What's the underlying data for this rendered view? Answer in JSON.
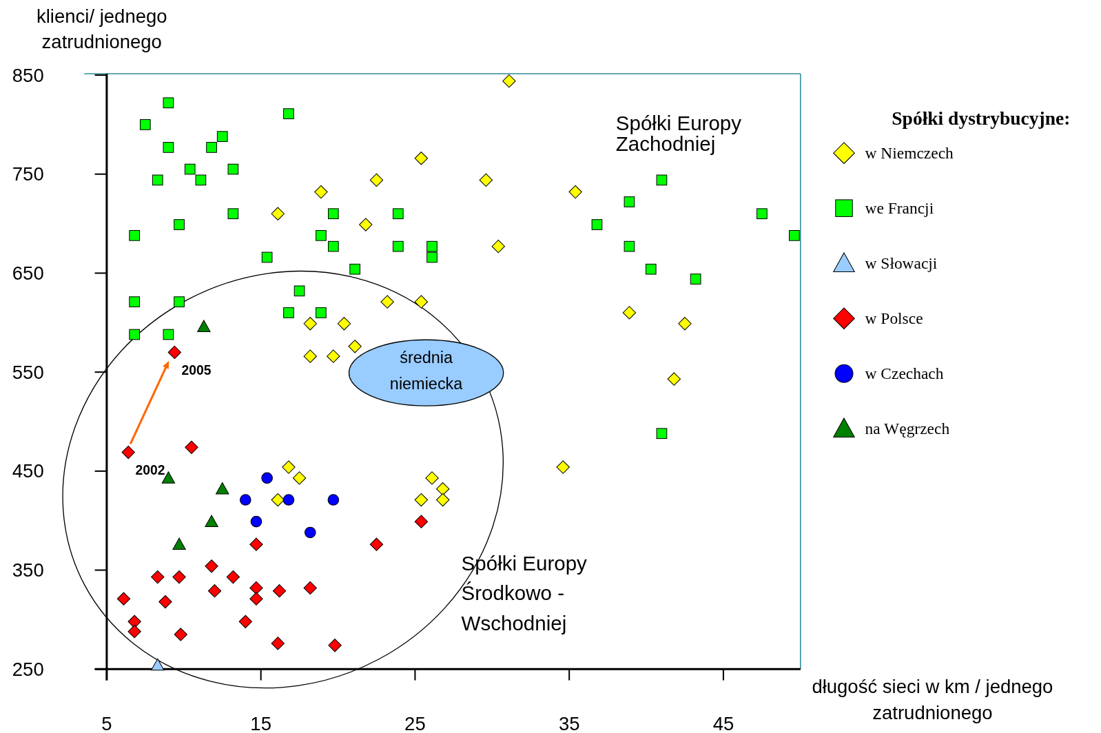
{
  "chart_data": {
    "type": "scatter",
    "xlabel": "długość sieci w km / jednego\nzatrudnionego",
    "ylabel": "klienci/ jednego\nzatrudnionego",
    "legend_title": "Spółki dystrybucyjne:",
    "legend": "right",
    "grid": false,
    "xlim": [
      5,
      50
    ],
    "ylim": [
      250,
      850
    ],
    "xticks": [
      5,
      15,
      25,
      35,
      45
    ],
    "yticks": [
      250,
      350,
      450,
      550,
      650,
      750,
      850
    ],
    "series": [
      {
        "name": "w Niemczech",
        "color": "#ffff00",
        "marker": "diamond",
        "x": [
          31.1,
          25.4,
          18.9,
          22.5,
          29.6,
          35.4,
          16.1,
          21.8,
          30.4,
          23.2,
          25.4,
          18.2,
          20.4,
          21.1,
          18.2,
          19.7,
          38.9,
          42.5,
          41.8,
          34.6,
          16.8,
          17.5,
          16.1,
          26.1,
          26.8,
          25.4,
          26.8
        ],
        "values": [
          844,
          766,
          732,
          744,
          744,
          732,
          710,
          699,
          677,
          621,
          621,
          599,
          599,
          576,
          566,
          566,
          610,
          599,
          543,
          454,
          454,
          443,
          421,
          443,
          432,
          421,
          421
        ]
      },
      {
        "name": "we Francji",
        "color": "#00ff00",
        "marker": "square",
        "x": [
          9.0,
          7.5,
          12.5,
          11.8,
          9.0,
          16.8,
          10.4,
          13.2,
          8.3,
          11.1,
          13.2,
          19.7,
          23.9,
          6.8,
          9.7,
          18.9,
          19.7,
          26.1,
          23.9,
          26.1,
          15.4,
          21.1,
          17.5,
          16.8,
          18.9,
          6.8,
          9.7,
          6.8,
          9.0,
          41.0,
          38.9,
          36.8,
          38.9,
          40.3,
          43.2,
          47.5,
          49.6,
          41.0
        ],
        "values": [
          822,
          800,
          788,
          777,
          777,
          811,
          755,
          755,
          744,
          744,
          710,
          710,
          710,
          688,
          699,
          688,
          677,
          677,
          677,
          666,
          666,
          654,
          632,
          610,
          610,
          621,
          621,
          588,
          588,
          744,
          722,
          699,
          677,
          654,
          644,
          710,
          688,
          488
        ]
      },
      {
        "name": "w Słowacji",
        "color": "#99ccff",
        "marker": "triangle",
        "x": [
          8.3
        ],
        "values": [
          254
        ]
      },
      {
        "name": "w Polsce",
        "color": "#ff0000",
        "marker": "diamond",
        "x": [
          9.4,
          6.4,
          10.5,
          8.8,
          12.0,
          16.2,
          9.8,
          19.8,
          6.1,
          6.8,
          6.8,
          8.3,
          9.7,
          11.8,
          13.2,
          14.7,
          14.7,
          14.7,
          14.0,
          16.1,
          18.2,
          22.5,
          25.4
        ],
        "values": [
          570,
          469,
          474,
          318,
          329,
          329,
          285,
          274,
          321,
          298,
          288,
          343,
          343,
          354,
          343,
          376,
          332,
          321,
          298,
          276,
          332,
          376,
          399
        ]
      },
      {
        "name": "w Czechach",
        "color": "#0000ff",
        "marker": "circle",
        "x": [
          15.4,
          14.0,
          16.8,
          19.7,
          14.7,
          18.2
        ],
        "values": [
          443,
          421,
          421,
          421,
          399,
          388
        ]
      },
      {
        "name": "na Węgrzech",
        "color": "#008000",
        "marker": "triangle",
        "x": [
          11.3,
          9.0,
          12.5,
          11.8,
          9.7
        ],
        "values": [
          596,
          443,
          432,
          399,
          376
        ]
      }
    ],
    "annotations": [
      "Spółki Europy\nZachodniej",
      "Spółki Europy\nŚrodkowo -\nWschodniej",
      "średnia\nniemiecka",
      {
        "text": "2005",
        "x": 9.4,
        "y": 570
      },
      {
        "text": "2002",
        "x": 6.4,
        "y": 469
      }
    ]
  }
}
